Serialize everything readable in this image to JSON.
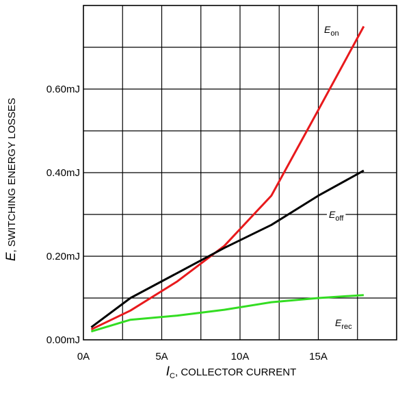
{
  "chart_data": {
    "type": "line",
    "xlabel": {
      "var": "I",
      "sub": "C",
      "text": ", COLLECTOR CURRENT"
    },
    "ylabel": {
      "var": "E",
      "text": ", SWITCHING ENERGY LOSSES"
    },
    "xlim": [
      0,
      20
    ],
    "ylim": [
      0,
      0.8
    ],
    "x_ticks": [
      0,
      5,
      10,
      15
    ],
    "x_tick_labels": [
      "0A",
      "5A",
      "10A",
      "15A"
    ],
    "y_ticks": [
      0,
      0.2,
      0.4,
      0.6
    ],
    "y_tick_labels": [
      "0.00mJ",
      "0.20mJ",
      "0.40mJ",
      "0.60mJ"
    ],
    "grid": true,
    "series": [
      {
        "name": "Eon",
        "label_var": "E",
        "label_sub": "on",
        "color": "#e8191c",
        "x": [
          0.5,
          3,
          6,
          9,
          12,
          15,
          17.9
        ],
        "y": [
          0.025,
          0.07,
          0.14,
          0.225,
          0.345,
          0.55,
          0.75
        ]
      },
      {
        "name": "Eoff",
        "label_var": "E",
        "label_sub": "off",
        "color": "#000000",
        "x": [
          0.5,
          3,
          6,
          9,
          12,
          15,
          17.9
        ],
        "y": [
          0.03,
          0.1,
          0.16,
          0.22,
          0.275,
          0.345,
          0.405
        ]
      },
      {
        "name": "Erec",
        "label_var": "E",
        "label_sub": "rec",
        "color": "#33dd22",
        "x": [
          0.5,
          3,
          6,
          9,
          12,
          15,
          17.9
        ],
        "y": [
          0.02,
          0.048,
          0.058,
          0.072,
          0.09,
          0.1,
          0.107
        ]
      }
    ]
  }
}
